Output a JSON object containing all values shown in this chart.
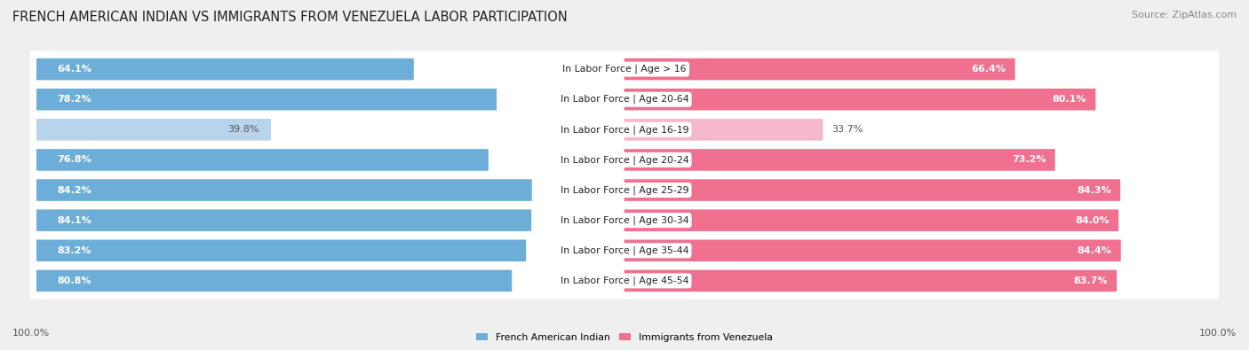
{
  "title": "FRENCH AMERICAN INDIAN VS IMMIGRANTS FROM VENEZUELA LABOR PARTICIPATION",
  "source": "Source: ZipAtlas.com",
  "categories": [
    "In Labor Force | Age > 16",
    "In Labor Force | Age 20-64",
    "In Labor Force | Age 16-19",
    "In Labor Force | Age 20-24",
    "In Labor Force | Age 25-29",
    "In Labor Force | Age 30-34",
    "In Labor Force | Age 35-44",
    "In Labor Force | Age 45-54"
  ],
  "left_values": [
    64.1,
    78.2,
    39.8,
    76.8,
    84.2,
    84.1,
    83.2,
    80.8
  ],
  "right_values": [
    66.4,
    80.1,
    33.7,
    73.2,
    84.3,
    84.0,
    84.4,
    83.7
  ],
  "left_color": "#6daed9",
  "right_color": "#f07090",
  "left_color_light": "#b8d4ea",
  "right_color_light": "#f5b8cc",
  "left_label": "French American Indian",
  "right_label": "Immigrants from Venezuela",
  "max_val": 100.0,
  "bg_color": "#efefef",
  "row_bg_color": "#e2e2e2",
  "title_fontsize": 10.5,
  "source_fontsize": 8,
  "cat_fontsize": 7.8,
  "value_fontsize": 8,
  "footer_label": "100.0%"
}
